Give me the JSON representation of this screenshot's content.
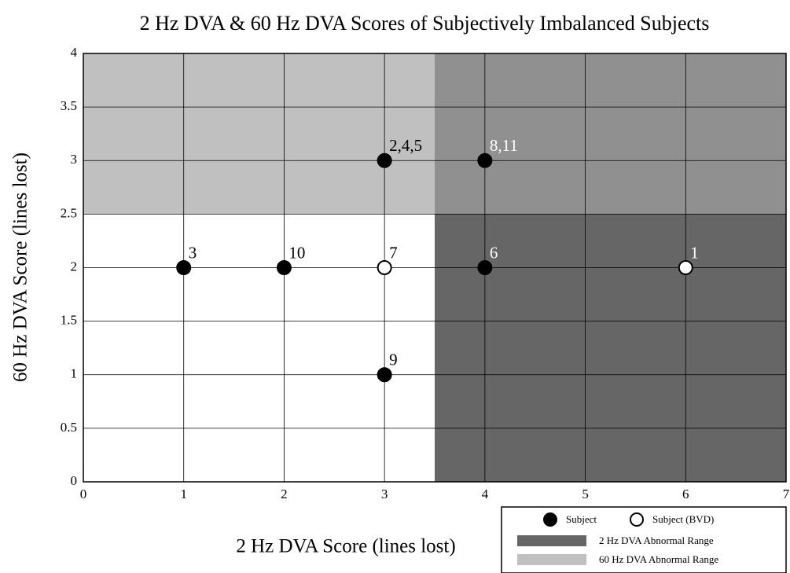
{
  "chart_data": {
    "type": "scatter",
    "title": "2 Hz DVA & 60 Hz DVA Scores of Subjectively Imbalanced Subjects",
    "xlabel": "2 Hz DVA Score (lines lost)",
    "ylabel": "60 Hz DVA Score (lines lost)",
    "xlim": [
      0,
      7
    ],
    "ylim": [
      0,
      4
    ],
    "xticks": [
      0,
      1,
      2,
      3,
      4,
      5,
      6,
      7
    ],
    "yticks": [
      0,
      0.5,
      1,
      1.5,
      2,
      2.5,
      3,
      3.5,
      4
    ],
    "grid": true,
    "regions": [
      {
        "name": "2 Hz DVA Abnormal Range",
        "color": "#666666",
        "xlim": [
          3.5,
          7
        ]
      },
      {
        "name": "60 Hz DVA Abnormal Range",
        "color": "#c0c0c0",
        "ylim": [
          2.5,
          4
        ]
      }
    ],
    "series": [
      {
        "name": "Subject",
        "color": "#000000",
        "fill": true,
        "x": [
          1,
          2,
          3,
          4,
          4,
          3
        ],
        "values": [
          2,
          2,
          3,
          3,
          2,
          1
        ],
        "labels": [
          "3",
          "10",
          "2,4,5",
          "8,11",
          "6",
          "9"
        ]
      },
      {
        "name": "Subject (BVD)",
        "color": "#000000",
        "fill": false,
        "x": [
          3,
          6
        ],
        "values": [
          2,
          2
        ],
        "labels": [
          "7",
          "1"
        ]
      }
    ]
  }
}
